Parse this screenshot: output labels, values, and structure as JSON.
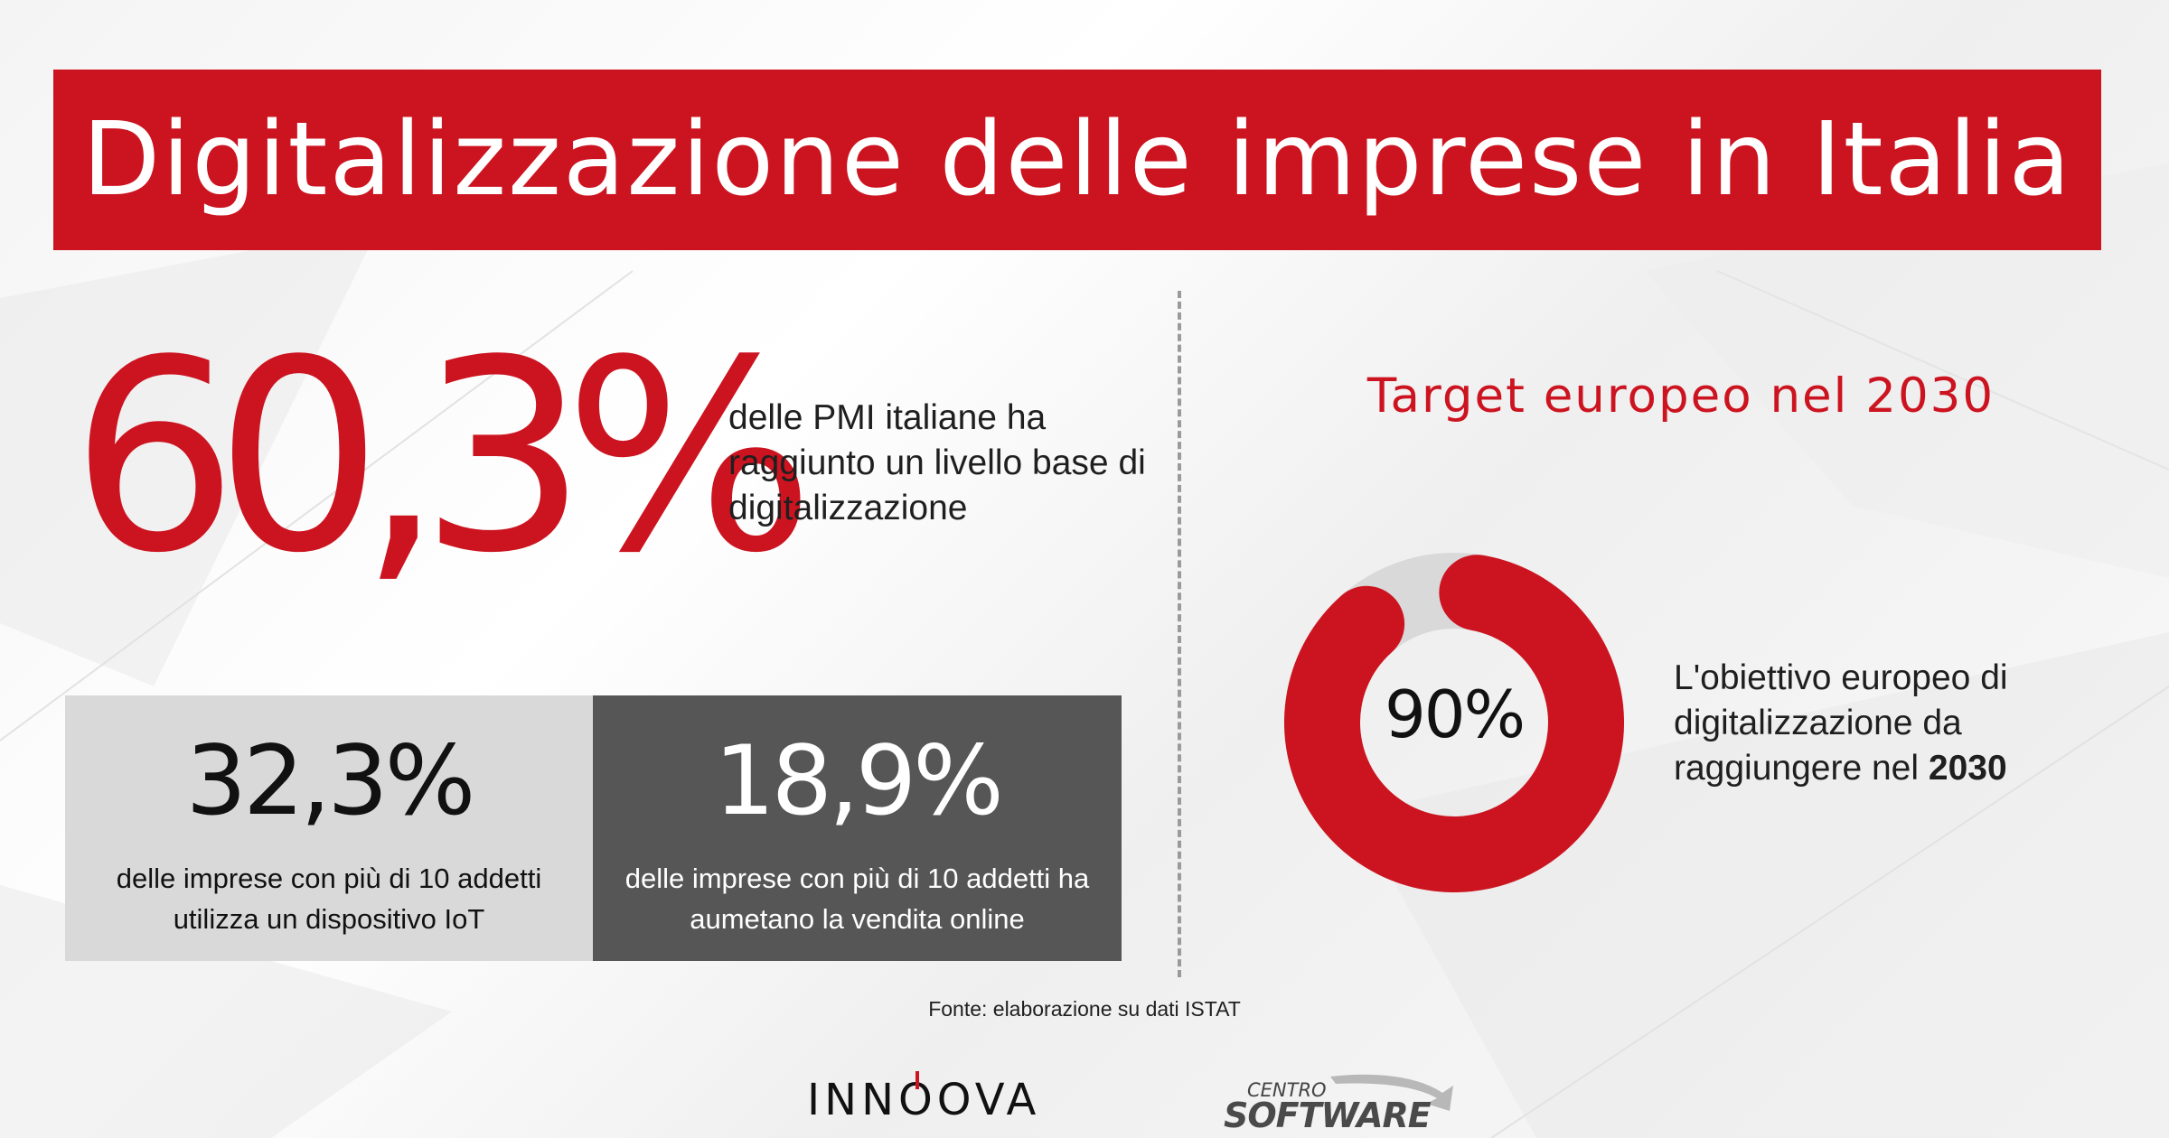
{
  "title": "Digitalizzazione delle imprese in Italia",
  "headline": {
    "value": "60,3%",
    "description": "delle PMI italiane ha raggiunto un livello base di digitalizzazione"
  },
  "stats": [
    {
      "value": "32,3%",
      "description": "delle imprese con più di 10 addetti utilizza un dispositivo IoT"
    },
    {
      "value": "18,9%",
      "description": "delle imprese con più di 10 addetti ha aumetano la vendita online"
    }
  ],
  "target": {
    "title": "Target europeo nel 2030",
    "label": "90%",
    "description_prefix": "L'obiettivo europeo di digitalizzazione da raggiungere nel ",
    "description_year": "2030"
  },
  "source": "Fonte: elaborazione su dati ISTAT",
  "logos": {
    "innoova": {
      "before": "INN",
      "mark": "O",
      "after": "OVA"
    },
    "centro_software": {
      "line1": "CENTRO",
      "line2": "SOFTWARE"
    }
  },
  "colors": {
    "accent": "#cc1420",
    "donut_track": "#d9d9d9",
    "box_light": "#d9d9d9",
    "box_dark": "#565656"
  },
  "chart_data": {
    "type": "pie",
    "categories": [
      "Target",
      ""
    ],
    "values": [
      90,
      10
    ],
    "title": "Target europeo nel 2030"
  }
}
